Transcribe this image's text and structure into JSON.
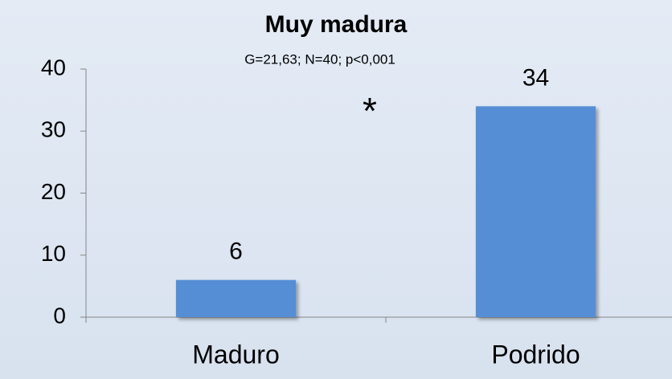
{
  "chart_data": {
    "type": "bar",
    "title": "Muy madura",
    "subtitle": "G=21,63; N=40; p<0,001",
    "annotation": "*",
    "categories": [
      "Maduro",
      "Podrido"
    ],
    "values": [
      6,
      34
    ],
    "color": "#558ed5",
    "ylim": [
      0,
      40
    ],
    "yticks": [
      0,
      10,
      20,
      30,
      40
    ]
  }
}
